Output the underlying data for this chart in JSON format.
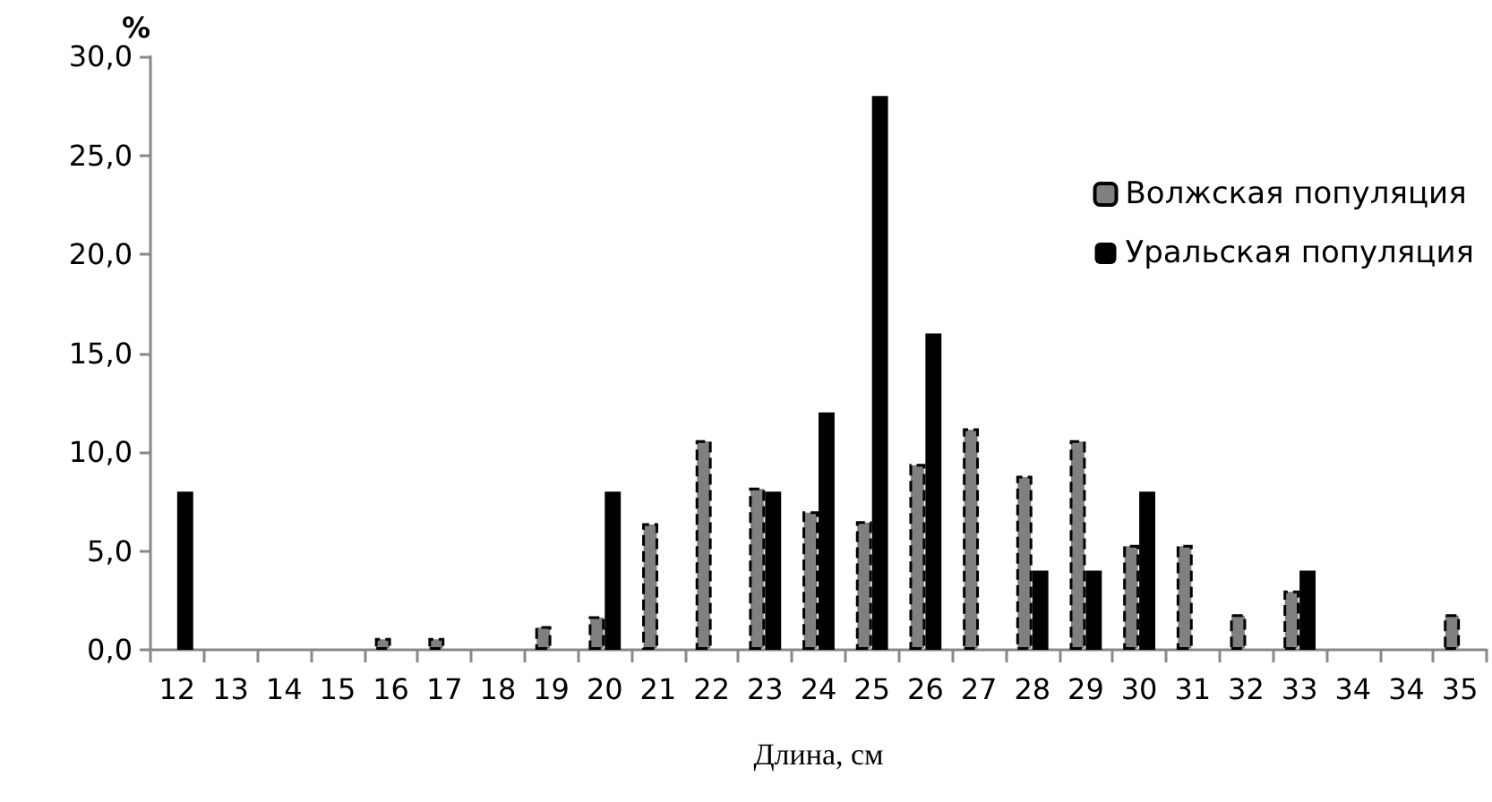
{
  "chart_data": {
    "type": "bar",
    "xlabel": "Длина, см",
    "ylabel": "%",
    "categories": [
      "12",
      "13",
      "14",
      "15",
      "16",
      "17",
      "18",
      "19",
      "20",
      "21",
      "22",
      "23",
      "24",
      "25",
      "26",
      "27",
      "28",
      "29",
      "30",
      "31",
      "32",
      "33",
      "34",
      "34",
      "35"
    ],
    "series": [
      {
        "name": "Волжская популяция",
        "color": "#808080",
        "line_style": "dashed",
        "values": [
          null,
          null,
          null,
          null,
          0.6,
          0.6,
          null,
          1.2,
          1.7,
          6.4,
          10.6,
          8.2,
          7.0,
          6.5,
          9.4,
          11.2,
          8.8,
          10.6,
          5.3,
          5.3,
          1.8,
          3.0,
          null,
          null,
          1.8
        ]
      },
      {
        "name": "Уральская популяция",
        "color": "#000000",
        "line_style": "solid",
        "values": [
          8,
          null,
          null,
          null,
          null,
          null,
          null,
          null,
          8,
          null,
          null,
          8,
          12,
          28,
          16,
          null,
          4,
          4,
          8,
          null,
          null,
          4,
          null,
          null,
          null
        ]
      }
    ],
    "ylim": [
      0,
      30
    ],
    "yticks": [
      {
        "value": 0,
        "label": "0,0"
      },
      {
        "value": 5,
        "label": "5,0"
      },
      {
        "value": 10,
        "label": "10,0"
      },
      {
        "value": 15,
        "label": "15,0"
      },
      {
        "value": 20,
        "label": "20,0"
      },
      {
        "value": 25,
        "label": "25,0"
      },
      {
        "value": 30,
        "label": "30,0"
      }
    ],
    "grid": false,
    "legend": "top right"
  }
}
